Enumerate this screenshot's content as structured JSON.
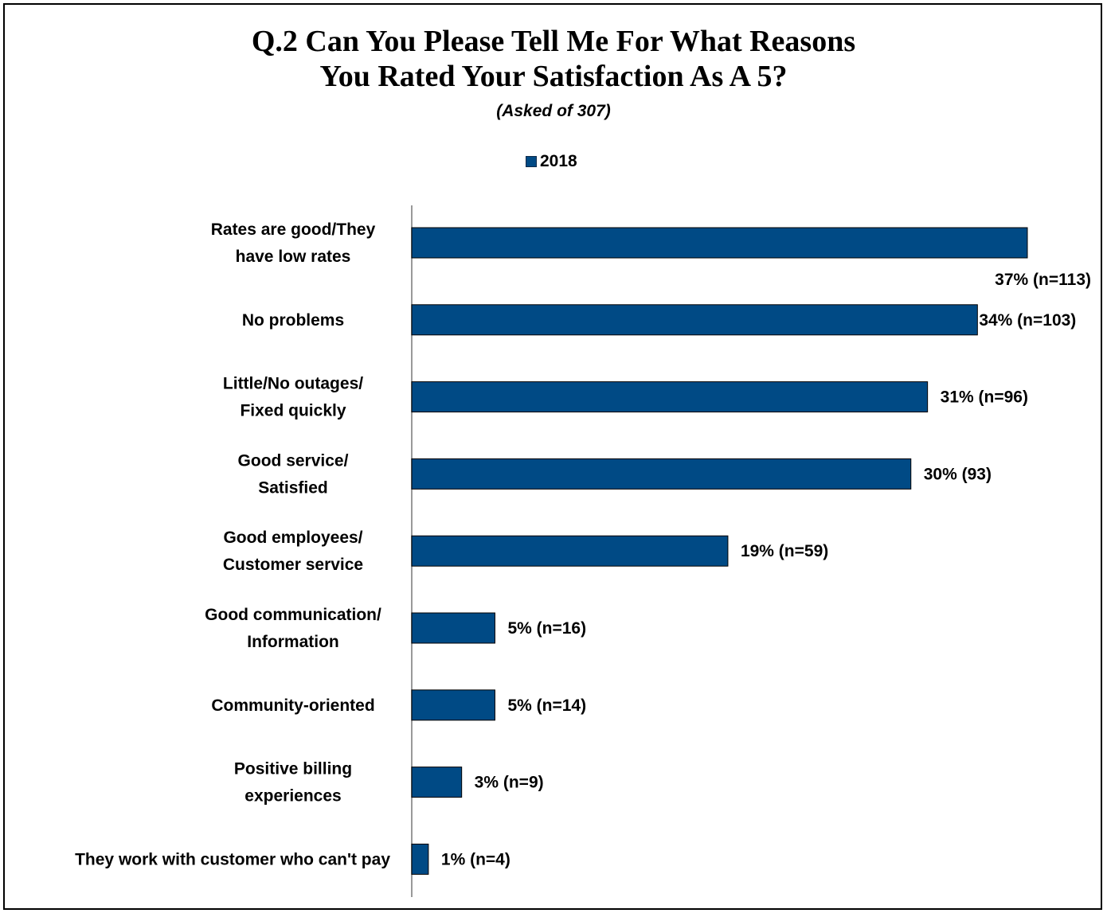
{
  "chart_data": {
    "type": "bar",
    "orientation": "horizontal",
    "title_line1": "Q.2 Can You Please Tell Me For What Reasons",
    "title_line2": "You Rated Your Satisfaction As A 5?",
    "subtitle": "(Asked of 307)",
    "legend_position": "top",
    "series": [
      {
        "name": "2018",
        "color": "#004a85",
        "values": [
          37,
          34,
          31,
          30,
          19,
          5,
          5,
          3,
          1
        ]
      }
    ],
    "categories": [
      [
        "Rates are good/They",
        "have low rates"
      ],
      [
        "No problems"
      ],
      [
        "Little/No outages/",
        "Fixed quickly"
      ],
      [
        "Good service/",
        "Satisfied"
      ],
      [
        "Good employees/",
        "Customer service"
      ],
      [
        "Good communication/",
        "Information"
      ],
      [
        "Community-oriented"
      ],
      [
        "Positive billing",
        "experiences"
      ],
      [
        "They work with customer who can't pay"
      ]
    ],
    "data_labels": [
      "37% (n=113)",
      "34% (n=103)",
      "31% (n=96)",
      "30% (93)",
      "19% (n=59)",
      "5% (n=16)",
      "5% (n=14)",
      "3% (n=9)",
      "1% (n=4)"
    ],
    "xlim": [
      0,
      40
    ],
    "grid": false
  }
}
